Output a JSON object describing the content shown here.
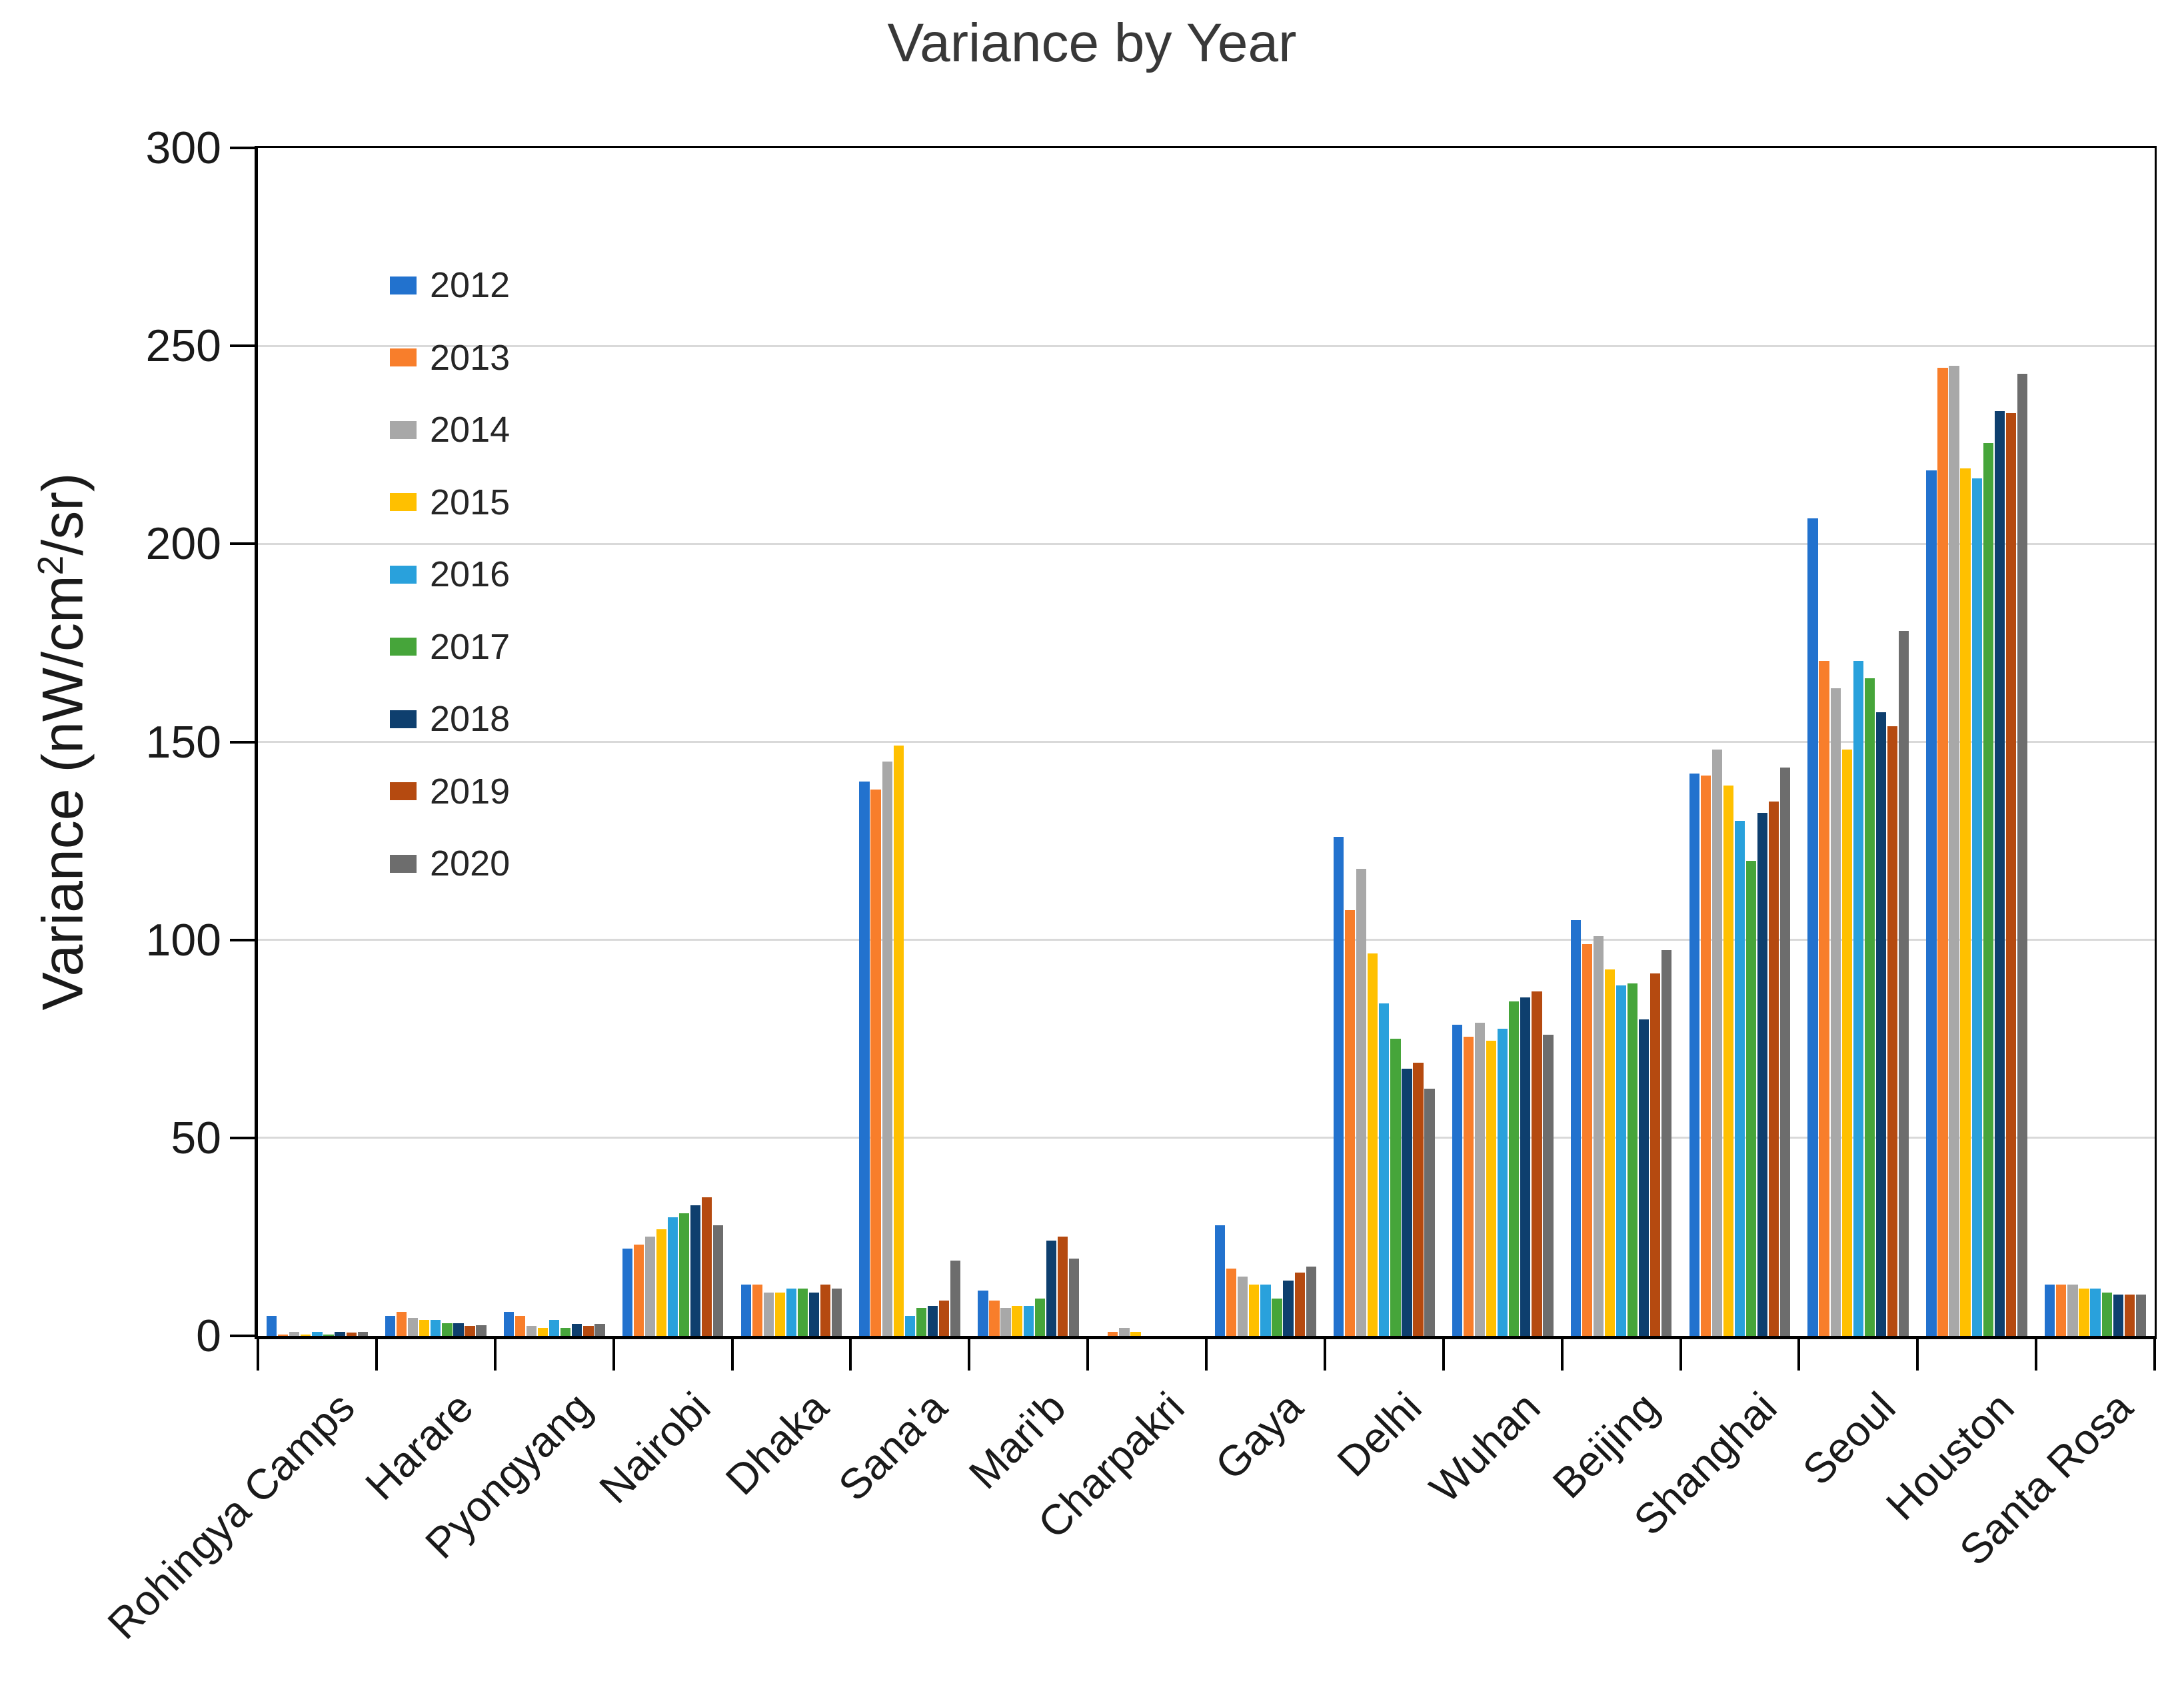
{
  "title": "Variance by Year",
  "chart_data": {
    "type": "bar",
    "title": "Variance by Year",
    "ylabel": {
      "prefix": "Variance (nW/cm",
      "sup": "2",
      "suffix": "/sr)"
    },
    "ylim": [
      0,
      300
    ],
    "yticks": [
      0,
      50,
      100,
      150,
      200,
      250,
      300
    ],
    "grid": true,
    "legend_position": "upper-left-inside",
    "categories": [
      "Rohingya Camps",
      "Harare",
      "Pyongyang",
      "Nairobi",
      "Dhaka",
      "Sana'a",
      "Mari'b",
      "Charpakri",
      "Gaya",
      "Delhi",
      "Wuhan",
      "Beijing",
      "Shanghai",
      "Seoul",
      "Houston",
      "Santa Rosa"
    ],
    "series": [
      {
        "name": "2012",
        "color": "#2272ce",
        "values": [
          5,
          5,
          6,
          22,
          13,
          140,
          11.5,
          0,
          28,
          126,
          78.5,
          105,
          142,
          206.5,
          218.5,
          13
        ]
      },
      {
        "name": "2013",
        "color": "#f87e2b",
        "values": [
          0.3,
          6,
          5,
          23,
          13,
          138,
          9,
          1,
          17,
          107.5,
          75.5,
          99,
          141.5,
          170.5,
          244.5,
          13
        ]
      },
      {
        "name": "2014",
        "color": "#a8a8a8",
        "values": [
          1,
          4.5,
          2.5,
          25,
          11,
          145,
          7,
          2,
          15,
          118,
          79,
          101,
          148,
          163.5,
          245,
          13
        ]
      },
      {
        "name": "2015",
        "color": "#ffc000",
        "values": [
          0.3,
          4,
          2,
          27,
          11,
          149,
          7.5,
          1,
          13,
          96.5,
          74.5,
          92.5,
          139,
          148,
          219,
          12
        ]
      },
      {
        "name": "2016",
        "color": "#29a1dc",
        "values": [
          1,
          4,
          4,
          30,
          12,
          5,
          7.5,
          0,
          13,
          84,
          77.5,
          88.5,
          130,
          170.5,
          216.5,
          12
        ]
      },
      {
        "name": "2017",
        "color": "#46a53a",
        "values": [
          0.3,
          3.2,
          2,
          31,
          12,
          7,
          9.5,
          0,
          9.5,
          75,
          84.5,
          89,
          120,
          166,
          225.5,
          11
        ]
      },
      {
        "name": "2018",
        "color": "#0e3f6e",
        "values": [
          1,
          3.2,
          3,
          33,
          11,
          7.5,
          24,
          0,
          14,
          67.5,
          85.5,
          80,
          132,
          157.5,
          233.5,
          10.5
        ]
      },
      {
        "name": "2019",
        "color": "#b54a10",
        "values": [
          0.8,
          2.5,
          2.5,
          35,
          13,
          9,
          25,
          0,
          16,
          69,
          87,
          91.5,
          135,
          154,
          233,
          10.5
        ]
      },
      {
        "name": "2020",
        "color": "#6d6d6d",
        "values": [
          1,
          2.7,
          3,
          28,
          12,
          19,
          19.5,
          0,
          17.5,
          62.5,
          76,
          97.5,
          143.5,
          178,
          243,
          10.5
        ]
      }
    ]
  }
}
